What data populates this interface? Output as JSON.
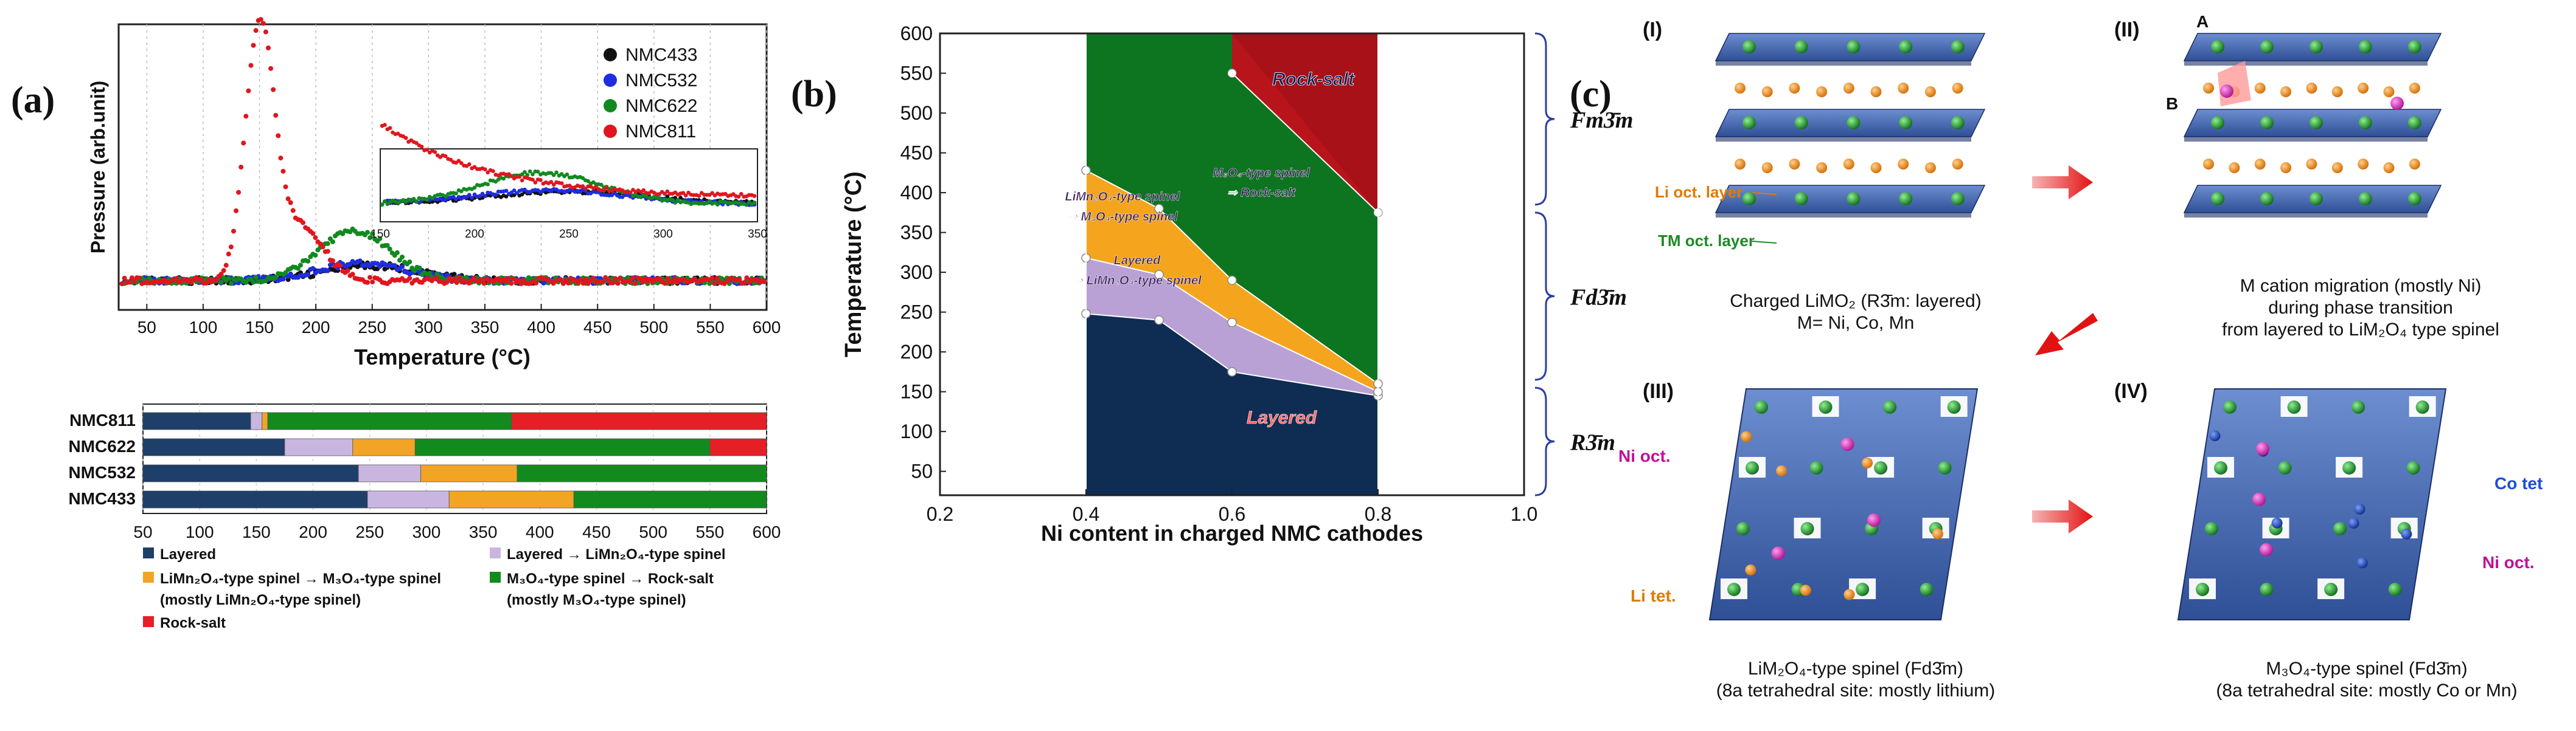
{
  "panel_labels": {
    "a": "(a)",
    "b": "(b)",
    "c": "(c)"
  },
  "chart_data": [
    {
      "type": "scatter",
      "id": "a-top",
      "title": "",
      "xlabel": "Temperature (°C)",
      "ylabel": "Pressure (arb.unit)",
      "xlim": [
        25,
        600
      ],
      "xticks": [
        50,
        100,
        150,
        200,
        250,
        300,
        350,
        400,
        450,
        500,
        550,
        600
      ],
      "legend": [
        "NMC433",
        "NMC532",
        "NMC622",
        "NMC811"
      ],
      "colors": {
        "NMC433": "#111111",
        "NMC532": "#1f2de0",
        "NMC622": "#12891f",
        "NMC811": "#e0161e"
      },
      "series": [
        {
          "name": "NMC433",
          "peak_x": 250,
          "peak_y": 0.06,
          "width": 60,
          "base": 0.02
        },
        {
          "name": "NMC532",
          "peak_x": 240,
          "peak_y": 0.07,
          "width": 55,
          "base": 0.02
        },
        {
          "name": "NMC622",
          "peak_x": 235,
          "peak_y": 0.2,
          "width": 45,
          "base": 0.02
        },
        {
          "name": "NMC811",
          "peak_x": 150,
          "peak_y": 1.0,
          "width": 18,
          "base": 0.02
        }
      ],
      "inset": {
        "xlim": [
          150,
          350
        ],
        "xticks": [
          150,
          200,
          250,
          300,
          350
        ],
        "series": [
          {
            "name": "NMC433",
            "peak_x": 250,
            "peak_y": 0.16,
            "width": 60
          },
          {
            "name": "NMC532",
            "peak_x": 240,
            "peak_y": 0.18,
            "width": 55
          },
          {
            "name": "NMC622",
            "peak_x": 235,
            "peak_y": 0.42,
            "width": 45
          },
          {
            "name": "NMC811",
            "peak_x": 160,
            "peak_y": 0.85,
            "width": 55
          }
        ]
      }
    },
    {
      "type": "bar",
      "id": "a-bottom",
      "orientation": "horizontal-stacked",
      "xlim": [
        50,
        600
      ],
      "xticks": [
        50,
        100,
        150,
        200,
        250,
        300,
        350,
        400,
        450,
        500,
        550,
        600
      ],
      "categories": [
        "NMC811",
        "NMC622",
        "NMC532",
        "NMC433"
      ],
      "segments": [
        {
          "name": "NMC811",
          "bounds": [
            {
              "from": 50,
              "to": 145,
              "phase": "layered"
            },
            {
              "from": 145,
              "to": 155,
              "phase": "lay_spinel"
            },
            {
              "from": 155,
              "to": 160,
              "phase": "limn_m3o4"
            },
            {
              "from": 160,
              "to": 375,
              "phase": "m3o4_rs"
            },
            {
              "from": 375,
              "to": 600,
              "phase": "rocksalt"
            }
          ]
        },
        {
          "name": "NMC622",
          "bounds": [
            {
              "from": 50,
              "to": 175,
              "phase": "layered"
            },
            {
              "from": 175,
              "to": 235,
              "phase": "lay_spinel"
            },
            {
              "from": 235,
              "to": 290,
              "phase": "limn_m3o4"
            },
            {
              "from": 290,
              "to": 550,
              "phase": "m3o4_rs"
            },
            {
              "from": 550,
              "to": 600,
              "phase": "rocksalt"
            }
          ]
        },
        {
          "name": "NMC532",
          "bounds": [
            {
              "from": 50,
              "to": 240,
              "phase": "layered"
            },
            {
              "from": 240,
              "to": 295,
              "phase": "lay_spinel"
            },
            {
              "from": 295,
              "to": 380,
              "phase": "limn_m3o4"
            },
            {
              "from": 380,
              "to": 600,
              "phase": "m3o4_rs"
            }
          ]
        },
        {
          "name": "NMC433",
          "bounds": [
            {
              "from": 50,
              "to": 248,
              "phase": "layered"
            },
            {
              "from": 248,
              "to": 320,
              "phase": "lay_spinel"
            },
            {
              "from": 320,
              "to": 430,
              "phase": "limn_m3o4"
            },
            {
              "from": 430,
              "to": 600,
              "phase": "m3o4_rs"
            }
          ]
        }
      ],
      "phase_colors": {
        "layered": "#1d3f69",
        "lay_spinel": "#c9b6e0",
        "limn_m3o4": "#f2a424",
        "m3o4_rs": "#138a1e",
        "rocksalt": "#e61e25"
      },
      "legend": [
        {
          "phase": "layered",
          "label": "Layered"
        },
        {
          "phase": "lay_spinel",
          "label": "Layered → LiMn₂O₄-type spinel"
        },
        {
          "phase": "limn_m3o4",
          "label": "LiMn₂O₄-type spinel → M₃O₄-type spinel"
        },
        {
          "phase": "limn_m3o4",
          "label": "(mostly LiMn₂O₄-type spinel)"
        },
        {
          "phase": "m3o4_rs",
          "label": "M₃O₄-type spinel → Rock-salt"
        },
        {
          "phase": "m3o4_rs",
          "label": "(mostly M₃O₄-type spinel)"
        },
        {
          "phase": "rocksalt",
          "label": "Rock-salt"
        }
      ]
    },
    {
      "type": "area",
      "id": "b",
      "xlabel": "Ni content in charged NMC cathodes",
      "ylabel": "Temperature (°C)",
      "xlim": [
        0.2,
        1.0
      ],
      "ylim": [
        20,
        600
      ],
      "xticks": [
        0.2,
        0.4,
        0.6,
        0.8,
        1.0
      ],
      "yticks": [
        50,
        100,
        150,
        200,
        250,
        300,
        350,
        400,
        450,
        500,
        550,
        600
      ],
      "boundaries": {
        "x": [
          0.4,
          0.5,
          0.6,
          0.8
        ],
        "layered_top": [
          248,
          240,
          175,
          145
        ],
        "lay_spinel_top": [
          318,
          297,
          237,
          150
        ],
        "limn_top": [
          428,
          380,
          290,
          160
        ],
        "rocksalt_bottom": [
          null,
          null,
          550,
          375
        ]
      },
      "regions": [
        {
          "label": "Layered",
          "color": "#0f2d52"
        },
        {
          "label": "Layered ⇒ LiMn₂O₄-type spinel",
          "color": "#b9a1d6"
        },
        {
          "label": "LiMn₂O₄-type spinel ⇒ M₃O₄-type spinel",
          "color": "#f5a51d"
        },
        {
          "label": "M₃O₄-type spinel ⇒ Rock-salt",
          "color": "#0d7420"
        },
        {
          "label": "Rock-salt",
          "color": "#b7141c"
        }
      ],
      "space_groups": [
        "Fm3̄m",
        "Fd3̄m",
        "R3̄m"
      ]
    }
  ],
  "panel_c": {
    "I": {
      "label": "(I)",
      "caption": [
        "Charged LiMO₂ (R3̄m: layered)",
        "M= Ni, Co, Mn"
      ],
      "labels": [
        "Li oct. layer",
        "TM oct. layer"
      ]
    },
    "II": {
      "label": "(II)",
      "caption": [
        "M cation migration (mostly Ni)",
        "during phase transition",
        "from layered to LiM₂O₄ type spinel"
      ],
      "labels": [
        "A",
        "B"
      ]
    },
    "III": {
      "label": "(III)",
      "caption": [
        "LiM₂O₄-type spinel (Fd3̄m)",
        "(8a  tetrahedral site: mostly lithium)"
      ],
      "labels": [
        "Ni oct.",
        "Li tet."
      ]
    },
    "IV": {
      "label": "(IV)",
      "caption": [
        "M₃O₄-type spinel (Fd3̄m)",
        "(8a  tetrahedral site: mostly Co or Mn)"
      ],
      "labels": [
        "Co tet",
        "Ni oct."
      ]
    }
  }
}
